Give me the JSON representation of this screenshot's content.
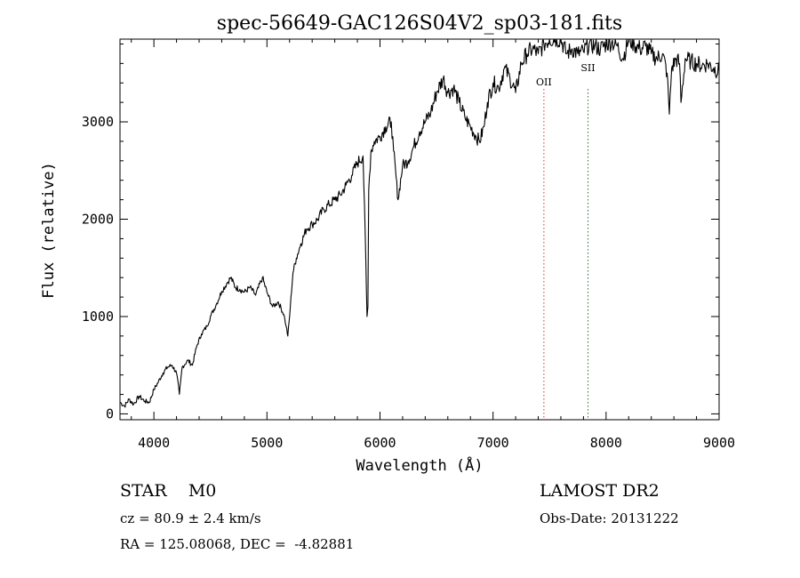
{
  "chart_data": {
    "type": "line",
    "title": "spec-56649-GAC126S04V2_sp03-181.fits",
    "xlabel": "Wavelength (Å)",
    "ylabel": "Flux (relative)",
    "xlim": [
      3700,
      9000
    ],
    "ylim": [
      -60,
      3850
    ],
    "xticks": [
      4000,
      5000,
      6000,
      7000,
      8000,
      9000
    ],
    "yticks": [
      0,
      1000,
      2000,
      3000
    ],
    "grid": false,
    "line_color": "#000000",
    "line_markers": [
      {
        "label": "OII",
        "x": 7450,
        "color": "#cc3333"
      },
      {
        "label": "SII",
        "x": 7840,
        "color": "#336633"
      }
    ],
    "series": [
      {
        "x": [
          3700,
          3740,
          3780,
          3820,
          3870,
          3920,
          3960,
          4000,
          4040,
          4080,
          4120,
          4160,
          4200,
          4225,
          4250,
          4300,
          4340,
          4380,
          4420,
          4470,
          4500,
          4550,
          4600,
          4650,
          4680,
          4720,
          4760,
          4800,
          4850,
          4900,
          4960,
          5000,
          5050,
          5100,
          5150,
          5170,
          5185,
          5200,
          5230,
          5260,
          5300,
          5350,
          5400,
          5450,
          5500,
          5550,
          5600,
          5650,
          5700,
          5750,
          5800,
          5850,
          5870,
          5885,
          5893,
          5900,
          5920,
          5950,
          6000,
          6050,
          6100,
          6120,
          6160,
          6200,
          6250,
          6300,
          6350,
          6400,
          6450,
          6500,
          6560,
          6600,
          6650,
          6700,
          6750,
          6800,
          6850,
          6880,
          6920,
          6950,
          7000,
          7050,
          7100,
          7150,
          7200,
          7250,
          7300,
          7350,
          7400,
          7450,
          7500,
          7550,
          7600,
          7650,
          7700,
          7750,
          7800,
          7850,
          7900,
          7950,
          8000,
          8050,
          8100,
          8150,
          8200,
          8250,
          8300,
          8350,
          8400,
          8450,
          8500,
          8540,
          8560,
          8580,
          8620,
          8650,
          8663,
          8700,
          8750,
          8800,
          8850,
          8900,
          8950,
          9000
        ],
        "values": [
          120,
          80,
          150,
          100,
          180,
          130,
          120,
          250,
          330,
          420,
          480,
          500,
          420,
          200,
          480,
          550,
          500,
          700,
          820,
          900,
          1000,
          1120,
          1260,
          1350,
          1400,
          1300,
          1280,
          1250,
          1300,
          1220,
          1400,
          1250,
          1100,
          1150,
          1020,
          900,
          800,
          1000,
          1450,
          1600,
          1750,
          1900,
          1950,
          2000,
          2100,
          2150,
          2200,
          2250,
          2350,
          2450,
          2580,
          2650,
          1800,
          1000,
          1100,
          2300,
          2700,
          2800,
          2850,
          2950,
          3000,
          2700,
          2200,
          2550,
          2600,
          2750,
          2900,
          3000,
          3100,
          3300,
          3450,
          3300,
          3350,
          3200,
          3050,
          2950,
          2850,
          2800,
          2950,
          3200,
          3400,
          3350,
          3550,
          3450,
          3300,
          3600,
          3700,
          3750,
          3700,
          3800,
          3850,
          3850,
          3850,
          3700,
          3750,
          3700,
          3720,
          3800,
          3780,
          3750,
          3800,
          3820,
          3780,
          3650,
          3850,
          3800,
          3750,
          3780,
          3700,
          3650,
          3700,
          3500,
          3080,
          3550,
          3650,
          3600,
          3200,
          3650,
          3620,
          3600,
          3580,
          3600,
          3550,
          3520
        ]
      }
    ]
  },
  "info": {
    "obj_class": "STAR    M0",
    "survey": "LAMOST DR2",
    "cz": "cz = 80.9 ± 2.4 km/s",
    "obs_date": "Obs-Date: 20131222",
    "coords": "RA = 125.08068, DEC =  -4.82881"
  }
}
